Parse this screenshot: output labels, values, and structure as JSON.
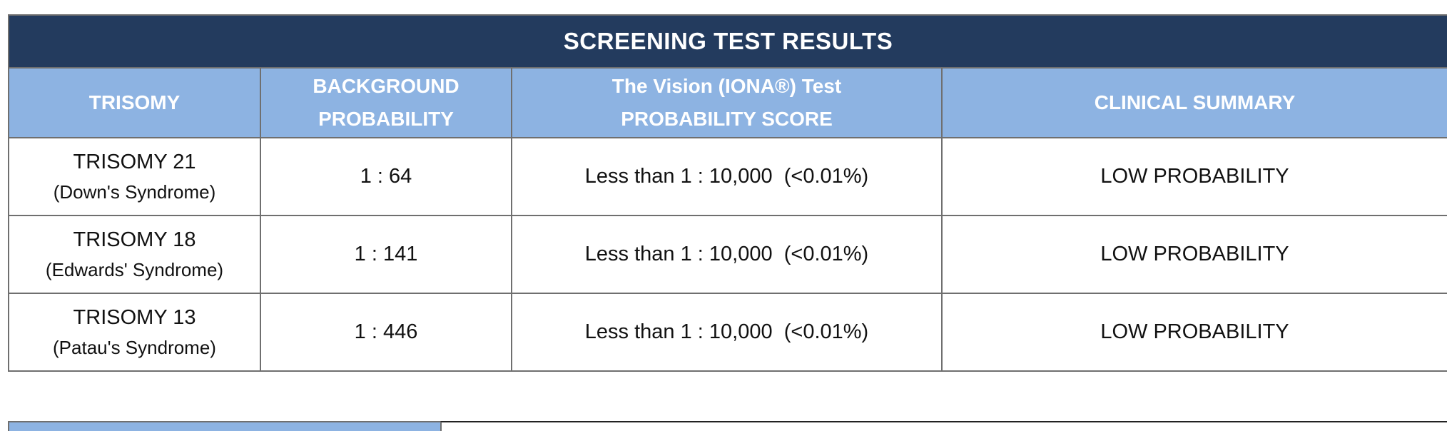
{
  "title": "SCREENING TEST RESULTS",
  "headers": {
    "trisomy": "TRISOMY",
    "background_line1": "BACKGROUND",
    "background_line2": "PROBABILITY",
    "score_line1": "The Vision (IONA®) Test",
    "score_line2": "PROBABILITY SCORE",
    "summary": "CLINICAL SUMMARY"
  },
  "rows": [
    {
      "trisomy": "TRISOMY 21",
      "syndrome": "(Down's Syndrome)",
      "background": "1 : 64",
      "score": "Less than 1 : 10,000  (<0.01%)",
      "summary": "LOW PROBABILITY"
    },
    {
      "trisomy": "TRISOMY 18",
      "syndrome": "(Edwards' Syndrome)",
      "background": "1 : 141",
      "score": "Less than 1 : 10,000  (<0.01%)",
      "summary": "LOW PROBABILITY"
    },
    {
      "trisomy": "TRISOMY 13",
      "syndrome": "(Patau's Syndrome)",
      "background": "1 : 446",
      "score": "Less than 1 : 10,000  (<0.01%)",
      "summary": "LOW PROBABILITY"
    }
  ],
  "colors": {
    "title_bg": "#233b5e",
    "header_bg": "#8db3e2",
    "border": "#6f6f6f"
  }
}
